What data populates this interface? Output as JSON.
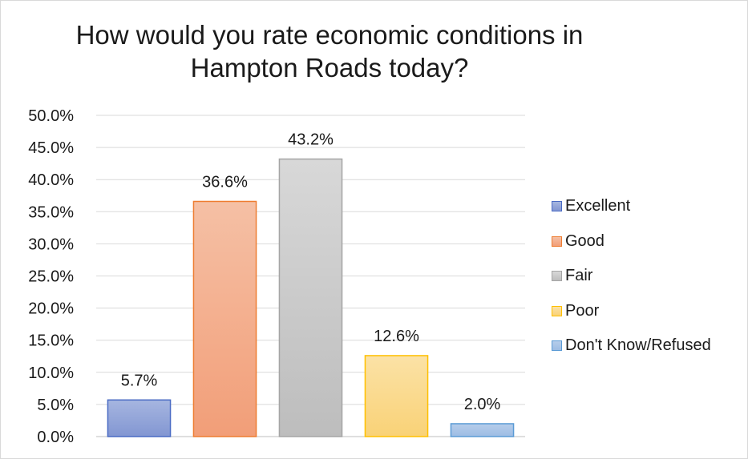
{
  "chart_data": {
    "type": "bar",
    "title_lines": [
      "How would you rate economic conditions in",
      "Hampton Roads today?"
    ],
    "categories": [
      "Excellent",
      "Good",
      "Fair",
      "Poor",
      "Don't Know/Refused"
    ],
    "values": [
      5.7,
      36.6,
      43.2,
      12.6,
      2.0
    ],
    "value_labels": [
      "5.7%",
      "36.6%",
      "43.2%",
      "12.6%",
      "2.0%"
    ],
    "ylim": [
      0,
      50
    ],
    "ytick_values": [
      0,
      5,
      10,
      15,
      20,
      25,
      30,
      35,
      40,
      45,
      50
    ],
    "ytick_labels": [
      "0.0%",
      "5.0%",
      "10.0%",
      "15.0%",
      "20.0%",
      "25.0%",
      "30.0%",
      "35.0%",
      "40.0%",
      "45.0%",
      "50.0%"
    ],
    "grid": true,
    "legend_position": "right",
    "colors": {
      "fills_top": [
        "#a6b6e0",
        "#f5c0a5",
        "#d8d8d8",
        "#fbe2a6",
        "#b6cdea"
      ],
      "fills_bottom": [
        "#8296d2",
        "#f29e78",
        "#bdbdbd",
        "#f9d277",
        "#9dbde4"
      ],
      "borders": [
        "#4a6bc4",
        "#ee7d31",
        "#a5a5a5",
        "#ffc000",
        "#5b9bd5"
      ]
    }
  }
}
